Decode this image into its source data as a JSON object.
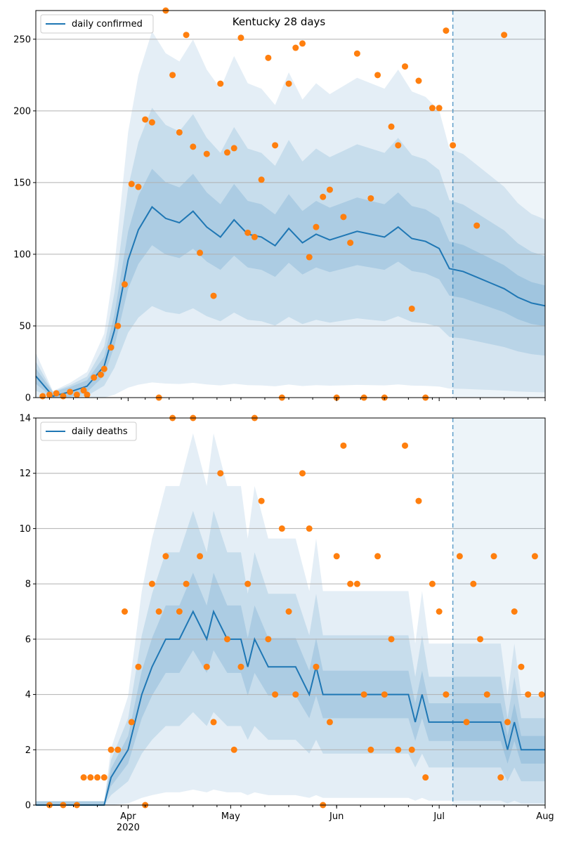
{
  "chart_data": [
    {
      "type": "line",
      "title": "Kentucky 28 days",
      "ylim": [
        0,
        270
      ],
      "yticks": [
        0,
        50,
        100,
        150,
        200,
        250
      ],
      "grid": "y",
      "legend": {
        "position": "top-left",
        "entries": [
          "daily confirmed"
        ]
      },
      "xlim": [
        "2020-03-05",
        "2020-08-01"
      ],
      "forecast_start": "2020-07-05",
      "xtick_labels": [
        {
          "date": "2020-04-01",
          "label": "Apr",
          "sublabel": "2020"
        },
        {
          "date": "2020-05-01",
          "label": "May"
        },
        {
          "date": "2020-06-01",
          "label": "Jun"
        },
        {
          "date": "2020-07-01",
          "label": "Jul"
        },
        {
          "date": "2020-08-01",
          "label": "Aug"
        }
      ],
      "colors": {
        "line": "#1f77b4",
        "points": "#ff7f0e",
        "band": "#1f77b4",
        "grid": "#b0b0b0"
      },
      "series": [
        {
          "name": "daily confirmed",
          "kind": "line",
          "x": [
            "2020-03-05",
            "2020-03-10",
            "2020-03-15",
            "2020-03-20",
            "2020-03-25",
            "2020-03-28",
            "2020-04-01",
            "2020-04-04",
            "2020-04-08",
            "2020-04-12",
            "2020-04-16",
            "2020-04-20",
            "2020-04-24",
            "2020-04-28",
            "2020-05-02",
            "2020-05-06",
            "2020-05-10",
            "2020-05-14",
            "2020-05-18",
            "2020-05-22",
            "2020-05-26",
            "2020-05-30",
            "2020-06-03",
            "2020-06-07",
            "2020-06-11",
            "2020-06-15",
            "2020-06-19",
            "2020-06-23",
            "2020-06-27",
            "2020-07-01",
            "2020-07-04",
            "2020-07-08",
            "2020-07-12",
            "2020-07-16",
            "2020-07-20",
            "2020-07-24",
            "2020-07-28",
            "2020-08-01"
          ],
          "y": [
            15,
            1,
            4,
            8,
            22,
            47,
            96,
            117,
            133,
            125,
            122,
            130,
            119,
            112,
            124,
            114,
            112,
            106,
            118,
            108,
            114,
            110,
            113,
            116,
            114,
            112,
            119,
            111,
            109,
            104,
            90,
            88,
            84,
            80,
            76,
            70,
            66,
            64
          ]
        },
        {
          "name": "",
          "kind": "scatter",
          "x": [
            "2020-03-07",
            "2020-03-09",
            "2020-03-11",
            "2020-03-13",
            "2020-03-15",
            "2020-03-17",
            "2020-03-19",
            "2020-03-20",
            "2020-03-22",
            "2020-03-24",
            "2020-03-25",
            "2020-03-27",
            "2020-03-29",
            "2020-03-31",
            "2020-04-02",
            "2020-04-04",
            "2020-04-06",
            "2020-04-08",
            "2020-04-10",
            "2020-04-12",
            "2020-04-14",
            "2020-04-16",
            "2020-04-18",
            "2020-04-20",
            "2020-04-22",
            "2020-04-24",
            "2020-04-26",
            "2020-04-28",
            "2020-04-30",
            "2020-05-02",
            "2020-05-04",
            "2020-05-06",
            "2020-05-08",
            "2020-05-10",
            "2020-05-12",
            "2020-05-14",
            "2020-05-16",
            "2020-05-18",
            "2020-05-20",
            "2020-05-22",
            "2020-05-24",
            "2020-05-26",
            "2020-05-28",
            "2020-05-30",
            "2020-06-01",
            "2020-06-03",
            "2020-06-05",
            "2020-06-07",
            "2020-06-09",
            "2020-06-11",
            "2020-06-13",
            "2020-06-15",
            "2020-06-17",
            "2020-06-19",
            "2020-06-21",
            "2020-06-23",
            "2020-06-25",
            "2020-06-27",
            "2020-06-29",
            "2020-07-01",
            "2020-07-03",
            "2020-07-05",
            "2020-07-12",
            "2020-07-20"
          ],
          "y": [
            1,
            2,
            3,
            1,
            4,
            2,
            5,
            2,
            14,
            16,
            20,
            35,
            50,
            79,
            149,
            147,
            194,
            192,
            0,
            270,
            225,
            185,
            253,
            175,
            101,
            170,
            71,
            219,
            171,
            174,
            251,
            115,
            112,
            152,
            237,
            176,
            0,
            219,
            244,
            247,
            98,
            119,
            140,
            145,
            0,
            126,
            108,
            240,
            0,
            139,
            225,
            0,
            189,
            176,
            231,
            62,
            221,
            0,
            202,
            202,
            256,
            176,
            120,
            253
          ]
        }
      ],
      "band_half_widths_per_date": [
        {
          "x": "2020-03-05",
          "inner": 0.6,
          "middle": 1.0,
          "outer": 1.4
        },
        {
          "x": "2020-08-01",
          "inner": 0.6,
          "middle": 1.0,
          "outer": 1.4
        }
      ]
    },
    {
      "type": "line",
      "title": "",
      "ylim": [
        0,
        14
      ],
      "yticks": [
        0,
        2,
        4,
        6,
        8,
        10,
        12,
        14
      ],
      "grid": "y",
      "legend": {
        "position": "top-left",
        "entries": [
          "daily deaths"
        ]
      },
      "xlim": [
        "2020-03-05",
        "2020-08-01"
      ],
      "forecast_start": "2020-07-05",
      "xtick_labels": [
        {
          "date": "2020-04-01",
          "label": "Apr",
          "sublabel": "2020"
        },
        {
          "date": "2020-05-01",
          "label": "May"
        },
        {
          "date": "2020-06-01",
          "label": "Jun"
        },
        {
          "date": "2020-07-01",
          "label": "Jul"
        },
        {
          "date": "2020-08-01",
          "label": "Aug"
        }
      ],
      "colors": {
        "line": "#1f77b4",
        "points": "#ff7f0e",
        "band": "#1f77b4",
        "grid": "#b0b0b0"
      },
      "series": [
        {
          "name": "daily deaths",
          "kind": "line",
          "x": [
            "2020-03-05",
            "2020-03-25",
            "2020-03-27",
            "2020-04-01",
            "2020-04-03",
            "2020-04-05",
            "2020-04-08",
            "2020-04-12",
            "2020-04-16",
            "2020-04-20",
            "2020-04-24",
            "2020-04-26",
            "2020-04-30",
            "2020-05-04",
            "2020-05-06",
            "2020-05-08",
            "2020-05-12",
            "2020-05-16",
            "2020-05-20",
            "2020-05-24",
            "2020-05-26",
            "2020-05-28",
            "2020-06-01",
            "2020-06-08",
            "2020-06-15",
            "2020-06-22",
            "2020-06-24",
            "2020-06-26",
            "2020-06-28",
            "2020-06-30",
            "2020-07-10",
            "2020-07-19",
            "2020-07-21",
            "2020-07-23",
            "2020-07-25",
            "2020-08-01"
          ],
          "y": [
            0,
            0,
            1,
            2,
            3,
            4,
            5,
            6,
            6,
            7,
            6,
            7,
            6,
            6,
            5,
            6,
            5,
            5,
            5,
            4,
            5,
            4,
            4,
            4,
            4,
            4,
            3,
            4,
            3,
            3,
            3,
            3,
            2,
            3,
            2,
            2
          ]
        },
        {
          "name": "",
          "kind": "scatter",
          "x": [
            "2020-03-09",
            "2020-03-13",
            "2020-03-17",
            "2020-03-19",
            "2020-03-21",
            "2020-03-23",
            "2020-03-25",
            "2020-03-27",
            "2020-03-29",
            "2020-03-31",
            "2020-04-02",
            "2020-04-04",
            "2020-04-06",
            "2020-04-08",
            "2020-04-10",
            "2020-04-12",
            "2020-04-14",
            "2020-04-16",
            "2020-04-18",
            "2020-04-20",
            "2020-04-22",
            "2020-04-24",
            "2020-04-26",
            "2020-04-28",
            "2020-04-30",
            "2020-05-02",
            "2020-05-04",
            "2020-05-06",
            "2020-05-08",
            "2020-05-10",
            "2020-05-12",
            "2020-05-14",
            "2020-05-16",
            "2020-05-18",
            "2020-05-20",
            "2020-05-22",
            "2020-05-24",
            "2020-05-26",
            "2020-05-28",
            "2020-05-30",
            "2020-06-01",
            "2020-06-03",
            "2020-06-05",
            "2020-06-07",
            "2020-06-09",
            "2020-06-11",
            "2020-06-13",
            "2020-06-15",
            "2020-06-17",
            "2020-06-19",
            "2020-06-21",
            "2020-06-23",
            "2020-06-25",
            "2020-06-27",
            "2020-06-29",
            "2020-07-01",
            "2020-07-03",
            "2020-07-07",
            "2020-07-09",
            "2020-07-11",
            "2020-07-13",
            "2020-07-15",
            "2020-07-17",
            "2020-07-19",
            "2020-07-21",
            "2020-07-23",
            "2020-07-25",
            "2020-07-27",
            "2020-07-29",
            "2020-07-31"
          ],
          "y": [
            0,
            0,
            0,
            1,
            1,
            1,
            1,
            2,
            2,
            7,
            3,
            5,
            0,
            8,
            7,
            9,
            14,
            7,
            8,
            14,
            9,
            5,
            3,
            12,
            6,
            2,
            5,
            8,
            14,
            11,
            6,
            4,
            10,
            7,
            4,
            12,
            10,
            5,
            0,
            3,
            9,
            13,
            8,
            8,
            4,
            2,
            9,
            4,
            6,
            2,
            13,
            2,
            11,
            1,
            8,
            7,
            4,
            9,
            3,
            8,
            6,
            4,
            9,
            1,
            3,
            7,
            5,
            4,
            9,
            4
          ]
        }
      ],
      "band_half_widths_per_date": [
        {
          "x": "2020-03-05",
          "inner": 0.6,
          "middle": 1.0,
          "outer": 1.4
        },
        {
          "x": "2020-08-01",
          "inner": 0.6,
          "middle": 1.0,
          "outer": 1.4
        }
      ]
    }
  ]
}
